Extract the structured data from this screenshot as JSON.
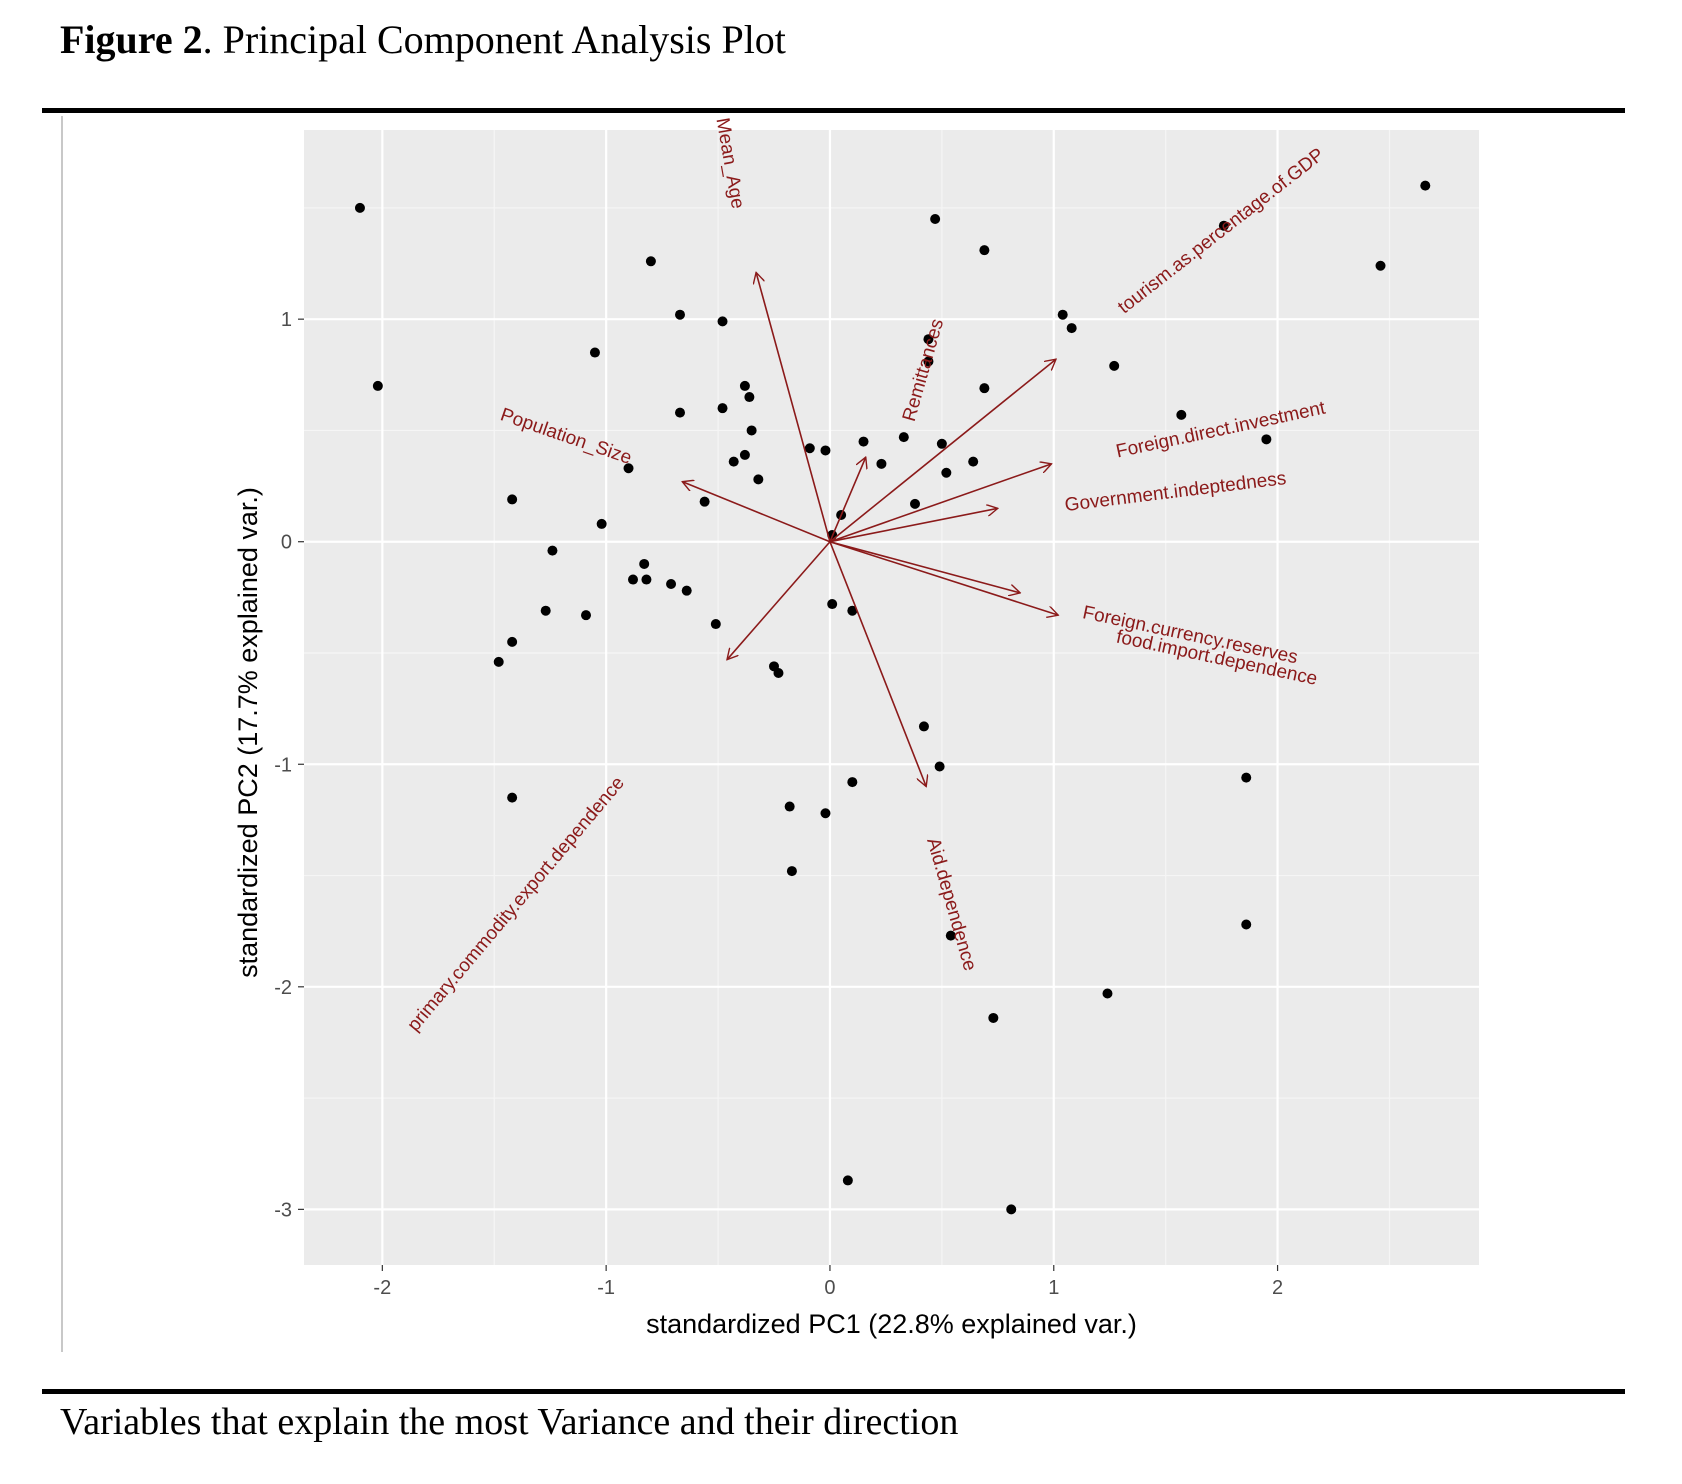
{
  "figure": {
    "label": "Figure 2",
    "title": ". Principal Component Analysis Plot",
    "caption": "Variables that explain the most Variance and their direction"
  },
  "chart_data": {
    "type": "scatter",
    "title": "",
    "xlabel": "standardized PC1 (22.8% explained var.)",
    "ylabel": "standardized PC2 (17.7% explained var.)",
    "xlim": [
      -2.35,
      2.9
    ],
    "ylim": [
      -3.25,
      1.85
    ],
    "xticks": [
      -2,
      -1,
      0,
      1,
      2
    ],
    "yticks": [
      -3,
      -2,
      -1,
      0,
      1
    ],
    "grid": true,
    "background": "#ebebeb",
    "point_color": "#000000",
    "arrow_color": "#8b1a1a",
    "points": [
      [
        -2.1,
        1.5
      ],
      [
        -2.02,
        0.7
      ],
      [
        -1.05,
        0.85
      ],
      [
        -1.42,
        0.19
      ],
      [
        -1.24,
        -0.04
      ],
      [
        -1.02,
        0.08
      ],
      [
        -1.48,
        -0.54
      ],
      [
        -1.42,
        -0.45
      ],
      [
        -1.27,
        -0.31
      ],
      [
        -1.09,
        -0.33
      ],
      [
        -1.42,
        -1.15
      ],
      [
        -0.9,
        0.33
      ],
      [
        -0.88,
        -0.17
      ],
      [
        -0.83,
        -0.1
      ],
      [
        -0.82,
        -0.17
      ],
      [
        -0.71,
        -0.19
      ],
      [
        -0.64,
        -0.22
      ],
      [
        -0.8,
        1.26
      ],
      [
        -0.67,
        1.02
      ],
      [
        -0.67,
        0.58
      ],
      [
        -0.56,
        0.18
      ],
      [
        -0.51,
        -0.37
      ],
      [
        -0.48,
        0.99
      ],
      [
        -0.48,
        0.6
      ],
      [
        -0.43,
        0.36
      ],
      [
        -0.38,
        0.39
      ],
      [
        -0.38,
        0.7
      ],
      [
        -0.36,
        0.65
      ],
      [
        -0.35,
        0.5
      ],
      [
        -0.32,
        0.28
      ],
      [
        -0.25,
        -0.56
      ],
      [
        -0.23,
        -0.59
      ],
      [
        -0.18,
        -1.19
      ],
      [
        -0.17,
        -1.48
      ],
      [
        -0.09,
        0.42
      ],
      [
        -0.02,
        0.41
      ],
      [
        -0.02,
        -1.22
      ],
      [
        0.01,
        0.03
      ],
      [
        0.01,
        -0.28
      ],
      [
        0.05,
        0.12
      ],
      [
        0.08,
        -2.87
      ],
      [
        0.1,
        -0.31
      ],
      [
        0.1,
        -1.08
      ],
      [
        0.15,
        0.45
      ],
      [
        0.23,
        0.35
      ],
      [
        0.33,
        0.47
      ],
      [
        0.38,
        0.17
      ],
      [
        0.42,
        -0.83
      ],
      [
        0.44,
        0.91
      ],
      [
        0.44,
        0.81
      ],
      [
        0.47,
        1.45
      ],
      [
        0.49,
        -1.01
      ],
      [
        0.5,
        0.44
      ],
      [
        0.52,
        0.31
      ],
      [
        0.54,
        -1.77
      ],
      [
        0.64,
        0.36
      ],
      [
        0.69,
        1.31
      ],
      [
        0.69,
        0.69
      ],
      [
        0.73,
        -2.14
      ],
      [
        0.81,
        -3.0
      ],
      [
        1.04,
        1.02
      ],
      [
        1.08,
        0.96
      ],
      [
        1.24,
        -2.03
      ],
      [
        1.27,
        0.79
      ],
      [
        1.57,
        0.57
      ],
      [
        1.76,
        1.42
      ],
      [
        1.86,
        -1.06
      ],
      [
        1.86,
        -1.72
      ],
      [
        1.95,
        0.46
      ],
      [
        2.46,
        1.24
      ],
      [
        2.66,
        1.6
      ]
    ],
    "loadings": [
      {
        "name": "Mean_Age",
        "x": -0.33,
        "y": 1.21
      },
      {
        "name": "Remittances",
        "x": 0.16,
        "y": 0.38
      },
      {
        "name": "tourism.as.percentage.of.GDP",
        "x": 1.01,
        "y": 0.82
      },
      {
        "name": "Foreign.direct.investment",
        "x": 0.99,
        "y": 0.35
      },
      {
        "name": "Government.indeptedness",
        "x": 0.75,
        "y": 0.15
      },
      {
        "name": "Foreign.currency.reserves",
        "x": 1.02,
        "y": -0.33
      },
      {
        "name": "food.import.dependence",
        "x": 0.85,
        "y": -0.23
      },
      {
        "name": "Aid.dependence",
        "x": 0.43,
        "y": -1.1
      },
      {
        "name": "Population_Size",
        "x": -0.66,
        "y": 0.27
      },
      {
        "name": "primary.commodity.export.dependence",
        "x": -0.46,
        "y": -0.53
      }
    ],
    "variable_labels": [
      {
        "text": "Mean_Age",
        "x": -0.45,
        "y": 1.7,
        "angle": 80,
        "anchor": "middle"
      },
      {
        "text": "Remittances",
        "x": 0.42,
        "y": 0.77,
        "angle": -74,
        "anchor": "middle"
      },
      {
        "text": "tourism.as.percentage.of.GDP",
        "x": 1.3,
        "y": 1.04,
        "angle": -38,
        "anchor": "start"
      },
      {
        "text": "Foreign.direct.investment",
        "x": 1.28,
        "y": 0.4,
        "angle": -12,
        "anchor": "start"
      },
      {
        "text": "Government.indeptedness",
        "x": 1.05,
        "y": 0.16,
        "angle": -7,
        "anchor": "start"
      },
      {
        "text": "Foreign.currency.reserves",
        "x": 1.13,
        "y": -0.32,
        "angle": 12,
        "anchor": "start"
      },
      {
        "text": "food.import.dependence",
        "x": 1.28,
        "y": -0.43,
        "angle": 12,
        "anchor": "start"
      },
      {
        "text": "Aid.dependence",
        "x": 0.54,
        "y": -1.63,
        "angle": 74,
        "anchor": "middle"
      },
      {
        "text": "Population_Size",
        "x": -1.18,
        "y": 0.47,
        "angle": 19,
        "anchor": "middle"
      },
      {
        "text": "primary.commodity.export.dependence",
        "x": -1.4,
        "y": -1.63,
        "angle": -50,
        "anchor": "middle"
      }
    ]
  }
}
